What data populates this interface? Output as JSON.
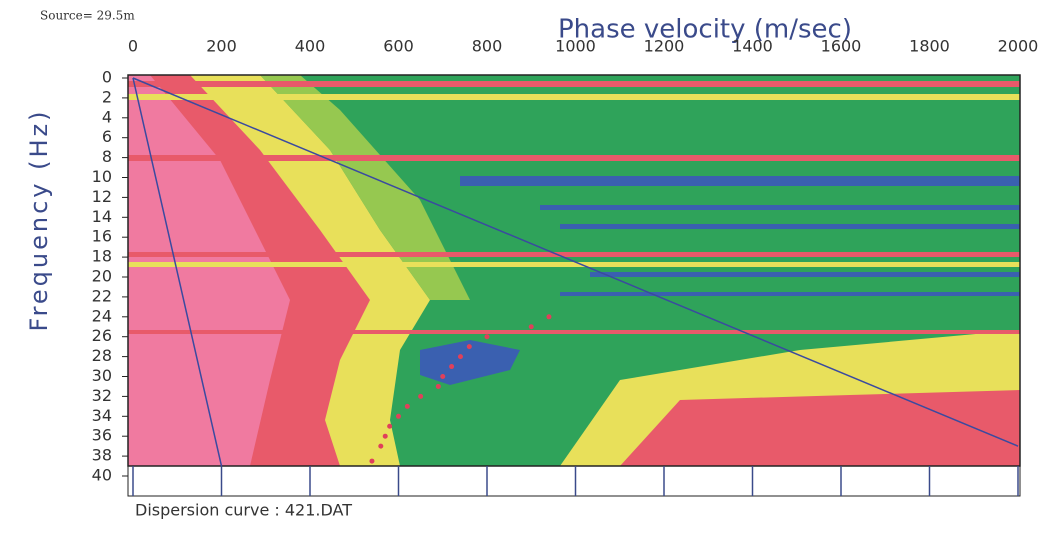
{
  "chart_data": {
    "type": "scatter",
    "source_note": "Source= 29.5m",
    "title": "Phase velocity (m/sec)",
    "y_label": "Frequency (Hz)",
    "footer": "Dispersion curve : 421.DAT",
    "xlim": [
      0,
      2000
    ],
    "xticks": [
      0,
      200,
      400,
      600,
      800,
      1000,
      1200,
      1400,
      1600,
      1800,
      2000
    ],
    "ylim": [
      0,
      40
    ],
    "yticks": [
      0,
      2,
      4,
      6,
      8,
      10,
      12,
      14,
      16,
      18,
      20,
      22,
      24,
      26,
      28,
      30,
      32,
      34,
      36,
      38,
      40
    ],
    "y_inverted": true,
    "x": [
      940,
      900,
      800,
      760,
      740,
      720,
      700,
      690,
      650,
      620,
      600,
      580,
      570,
      560,
      540
    ],
    "values": [
      24,
      25,
      26,
      27,
      28,
      29,
      30,
      31,
      32,
      33,
      34,
      35,
      36,
      37,
      38.5
    ],
    "color": "#e0405a",
    "lines": [
      {
        "x": [
          0,
          2000
        ],
        "y": [
          0,
          37
        ],
        "color": "#3a4aa0"
      },
      {
        "x": [
          0,
          200
        ],
        "y": [
          0,
          39
        ],
        "color": "#3a4aa0"
      }
    ]
  }
}
